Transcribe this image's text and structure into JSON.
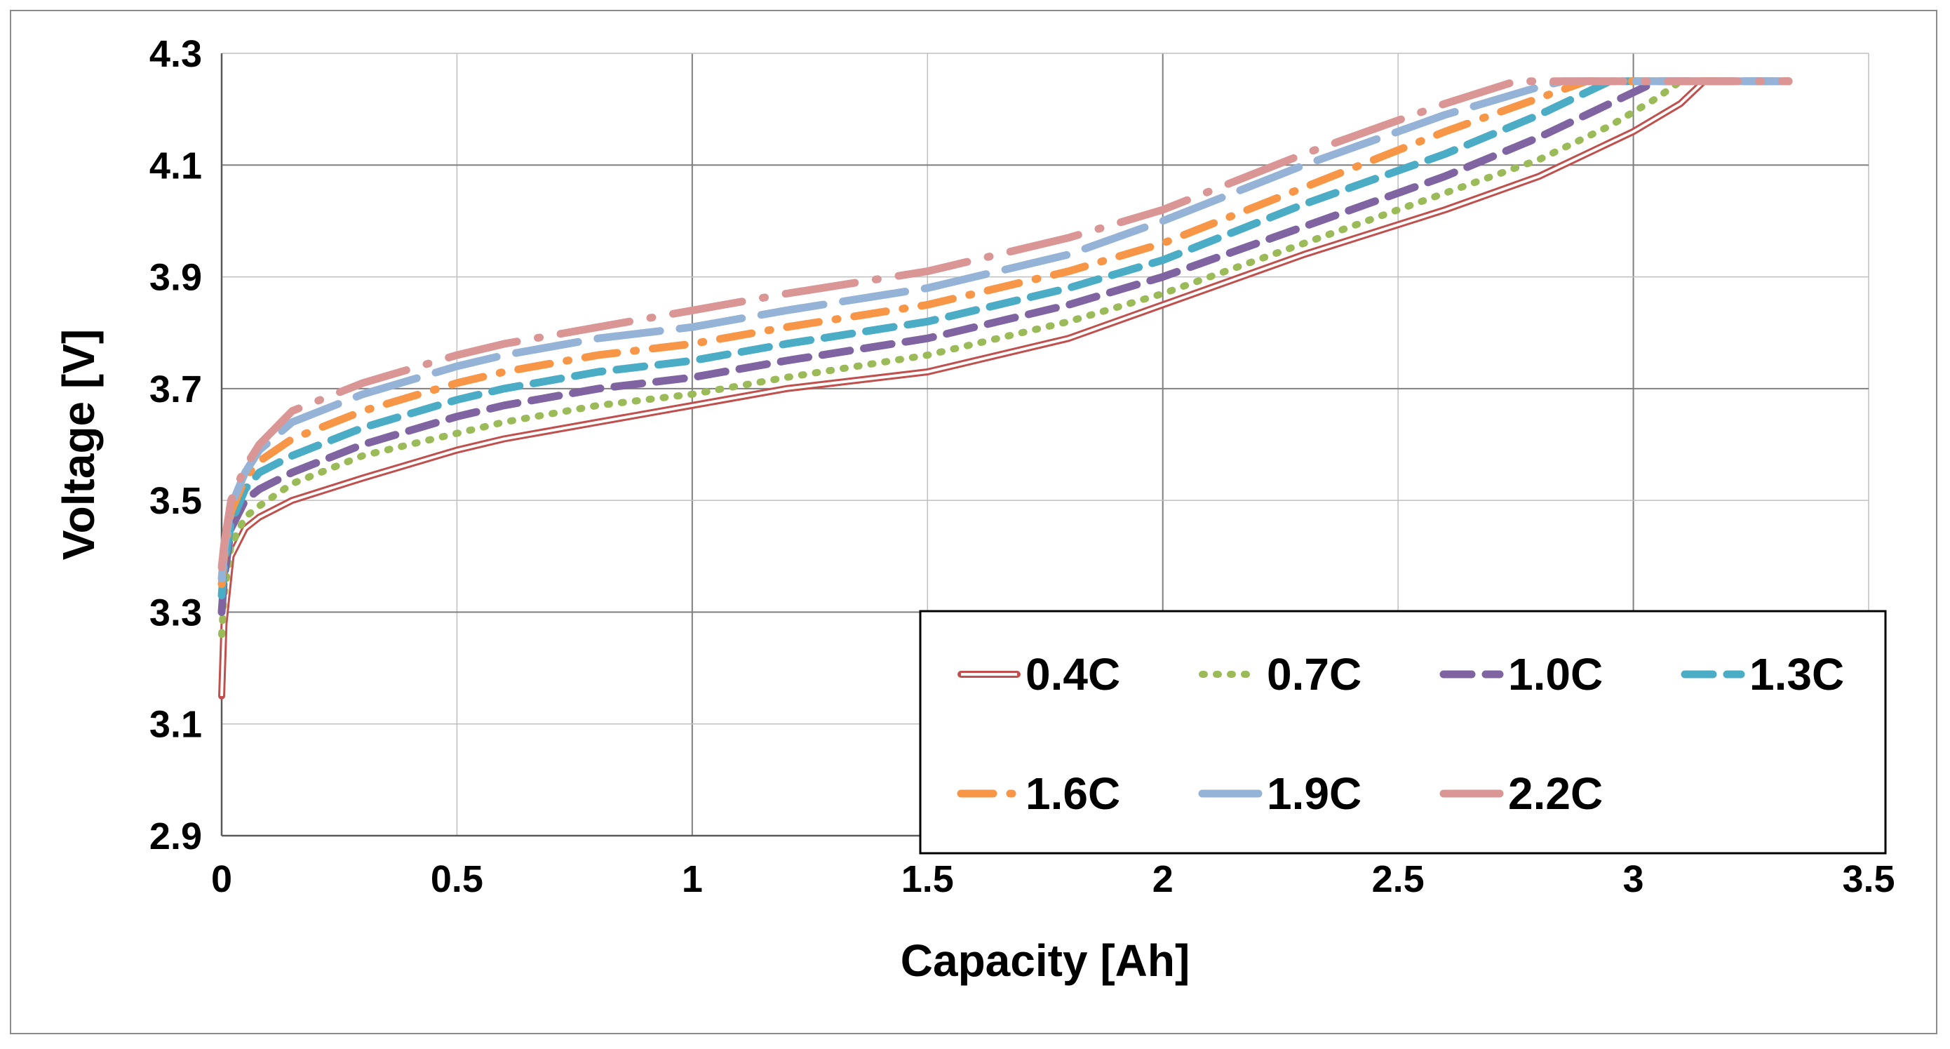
{
  "chart_data": {
    "type": "line",
    "title": "",
    "xlabel": "Capacity [Ah]",
    "ylabel": "Voltage [V]",
    "xlim": [
      0,
      3.5
    ],
    "ylim": [
      2.9,
      4.3
    ],
    "xticks": [
      0,
      0.5,
      1,
      1.5,
      2,
      2.5,
      3,
      3.5
    ],
    "yticks": [
      2.9,
      3.1,
      3.3,
      3.5,
      3.7,
      3.9,
      4.1,
      4.3
    ],
    "xtick_labels": [
      "0",
      "0.5",
      "1",
      "1.5",
      "2",
      "2.5",
      "3",
      "3.5"
    ],
    "ytick_labels": [
      "2.9",
      "3.1",
      "3.3",
      "3.5",
      "3.7",
      "3.9",
      "4.1",
      "4.3"
    ],
    "grid": true,
    "legend_position": "bottom-right",
    "series": [
      {
        "name": "0.4C",
        "color": "#c0504d",
        "style": "double",
        "x": [
          0,
          0.005,
          0.02,
          0.05,
          0.08,
          0.15,
          0.3,
          0.5,
          0.6,
          0.8,
          1.0,
          1.2,
          1.5,
          1.8,
          2.0,
          2.3,
          2.6,
          2.8,
          3.0,
          3.1,
          3.15,
          3.33
        ],
        "y": [
          3.15,
          3.28,
          3.4,
          3.45,
          3.47,
          3.5,
          3.54,
          3.59,
          3.61,
          3.64,
          3.67,
          3.7,
          3.73,
          3.79,
          3.85,
          3.94,
          4.02,
          4.08,
          4.16,
          4.21,
          4.25,
          4.25
        ]
      },
      {
        "name": "0.7C",
        "color": "#9bbb59",
        "style": "dotted",
        "x": [
          0,
          0.005,
          0.02,
          0.05,
          0.08,
          0.15,
          0.3,
          0.5,
          0.6,
          0.8,
          1.0,
          1.2,
          1.5,
          1.8,
          2.0,
          2.3,
          2.6,
          2.8,
          2.95,
          3.05,
          3.1,
          3.33
        ],
        "y": [
          3.26,
          3.33,
          3.42,
          3.47,
          3.49,
          3.53,
          3.58,
          3.62,
          3.64,
          3.67,
          3.69,
          3.72,
          3.76,
          3.82,
          3.87,
          3.96,
          4.05,
          4.11,
          4.17,
          4.22,
          4.25,
          4.25
        ]
      },
      {
        "name": "1.0C",
        "color": "#8064a2",
        "style": "dashed",
        "x": [
          0,
          0.005,
          0.02,
          0.05,
          0.08,
          0.15,
          0.3,
          0.5,
          0.6,
          0.8,
          1.0,
          1.2,
          1.5,
          1.8,
          2.0,
          2.3,
          2.6,
          2.8,
          2.9,
          3.0,
          3.05,
          3.33
        ],
        "y": [
          3.3,
          3.36,
          3.45,
          3.5,
          3.52,
          3.55,
          3.6,
          3.65,
          3.67,
          3.7,
          3.72,
          3.75,
          3.79,
          3.85,
          3.9,
          3.99,
          4.08,
          4.15,
          4.19,
          4.23,
          4.25,
          4.25
        ]
      },
      {
        "name": "1.3C",
        "color": "#4bacc6",
        "style": "dashed",
        "x": [
          0,
          0.005,
          0.02,
          0.05,
          0.08,
          0.15,
          0.3,
          0.5,
          0.6,
          0.8,
          1.0,
          1.2,
          1.5,
          1.8,
          2.0,
          2.3,
          2.6,
          2.8,
          2.9,
          2.95,
          3.33
        ],
        "y": [
          3.33,
          3.38,
          3.46,
          3.52,
          3.55,
          3.58,
          3.63,
          3.68,
          3.7,
          3.73,
          3.75,
          3.78,
          3.82,
          3.88,
          3.93,
          4.03,
          4.12,
          4.19,
          4.23,
          4.25,
          4.25
        ]
      },
      {
        "name": "1.6C",
        "color": "#f79646",
        "style": "dashdot",
        "x": [
          0,
          0.005,
          0.02,
          0.05,
          0.08,
          0.15,
          0.3,
          0.5,
          0.6,
          0.8,
          1.0,
          1.2,
          1.5,
          1.8,
          2.0,
          2.3,
          2.6,
          2.8,
          2.9,
          3.33
        ],
        "y": [
          3.35,
          3.4,
          3.48,
          3.54,
          3.57,
          3.61,
          3.66,
          3.71,
          3.73,
          3.76,
          3.78,
          3.81,
          3.85,
          3.91,
          3.96,
          4.06,
          4.16,
          4.22,
          4.25,
          4.25
        ]
      },
      {
        "name": "1.9C",
        "color": "#95b3d7",
        "style": "longdash",
        "x": [
          0,
          0.005,
          0.02,
          0.05,
          0.08,
          0.15,
          0.3,
          0.5,
          0.6,
          0.8,
          1.0,
          1.2,
          1.5,
          1.8,
          2.0,
          2.3,
          2.6,
          2.8,
          2.85,
          3.33
        ],
        "y": [
          3.36,
          3.41,
          3.49,
          3.55,
          3.59,
          3.64,
          3.69,
          3.74,
          3.76,
          3.79,
          3.81,
          3.84,
          3.88,
          3.94,
          4.0,
          4.1,
          4.19,
          4.24,
          4.25,
          4.25
        ]
      },
      {
        "name": "2.2C",
        "color": "#d99694",
        "style": "longdashdot",
        "x": [
          0,
          0.005,
          0.02,
          0.05,
          0.08,
          0.15,
          0.3,
          0.5,
          0.6,
          0.8,
          1.0,
          1.2,
          1.5,
          1.8,
          2.0,
          2.3,
          2.6,
          2.75,
          2.8,
          3.33
        ],
        "y": [
          3.38,
          3.42,
          3.5,
          3.56,
          3.6,
          3.66,
          3.71,
          3.76,
          3.78,
          3.81,
          3.84,
          3.87,
          3.91,
          3.97,
          4.02,
          4.12,
          4.21,
          4.25,
          4.25,
          4.25
        ]
      }
    ]
  }
}
